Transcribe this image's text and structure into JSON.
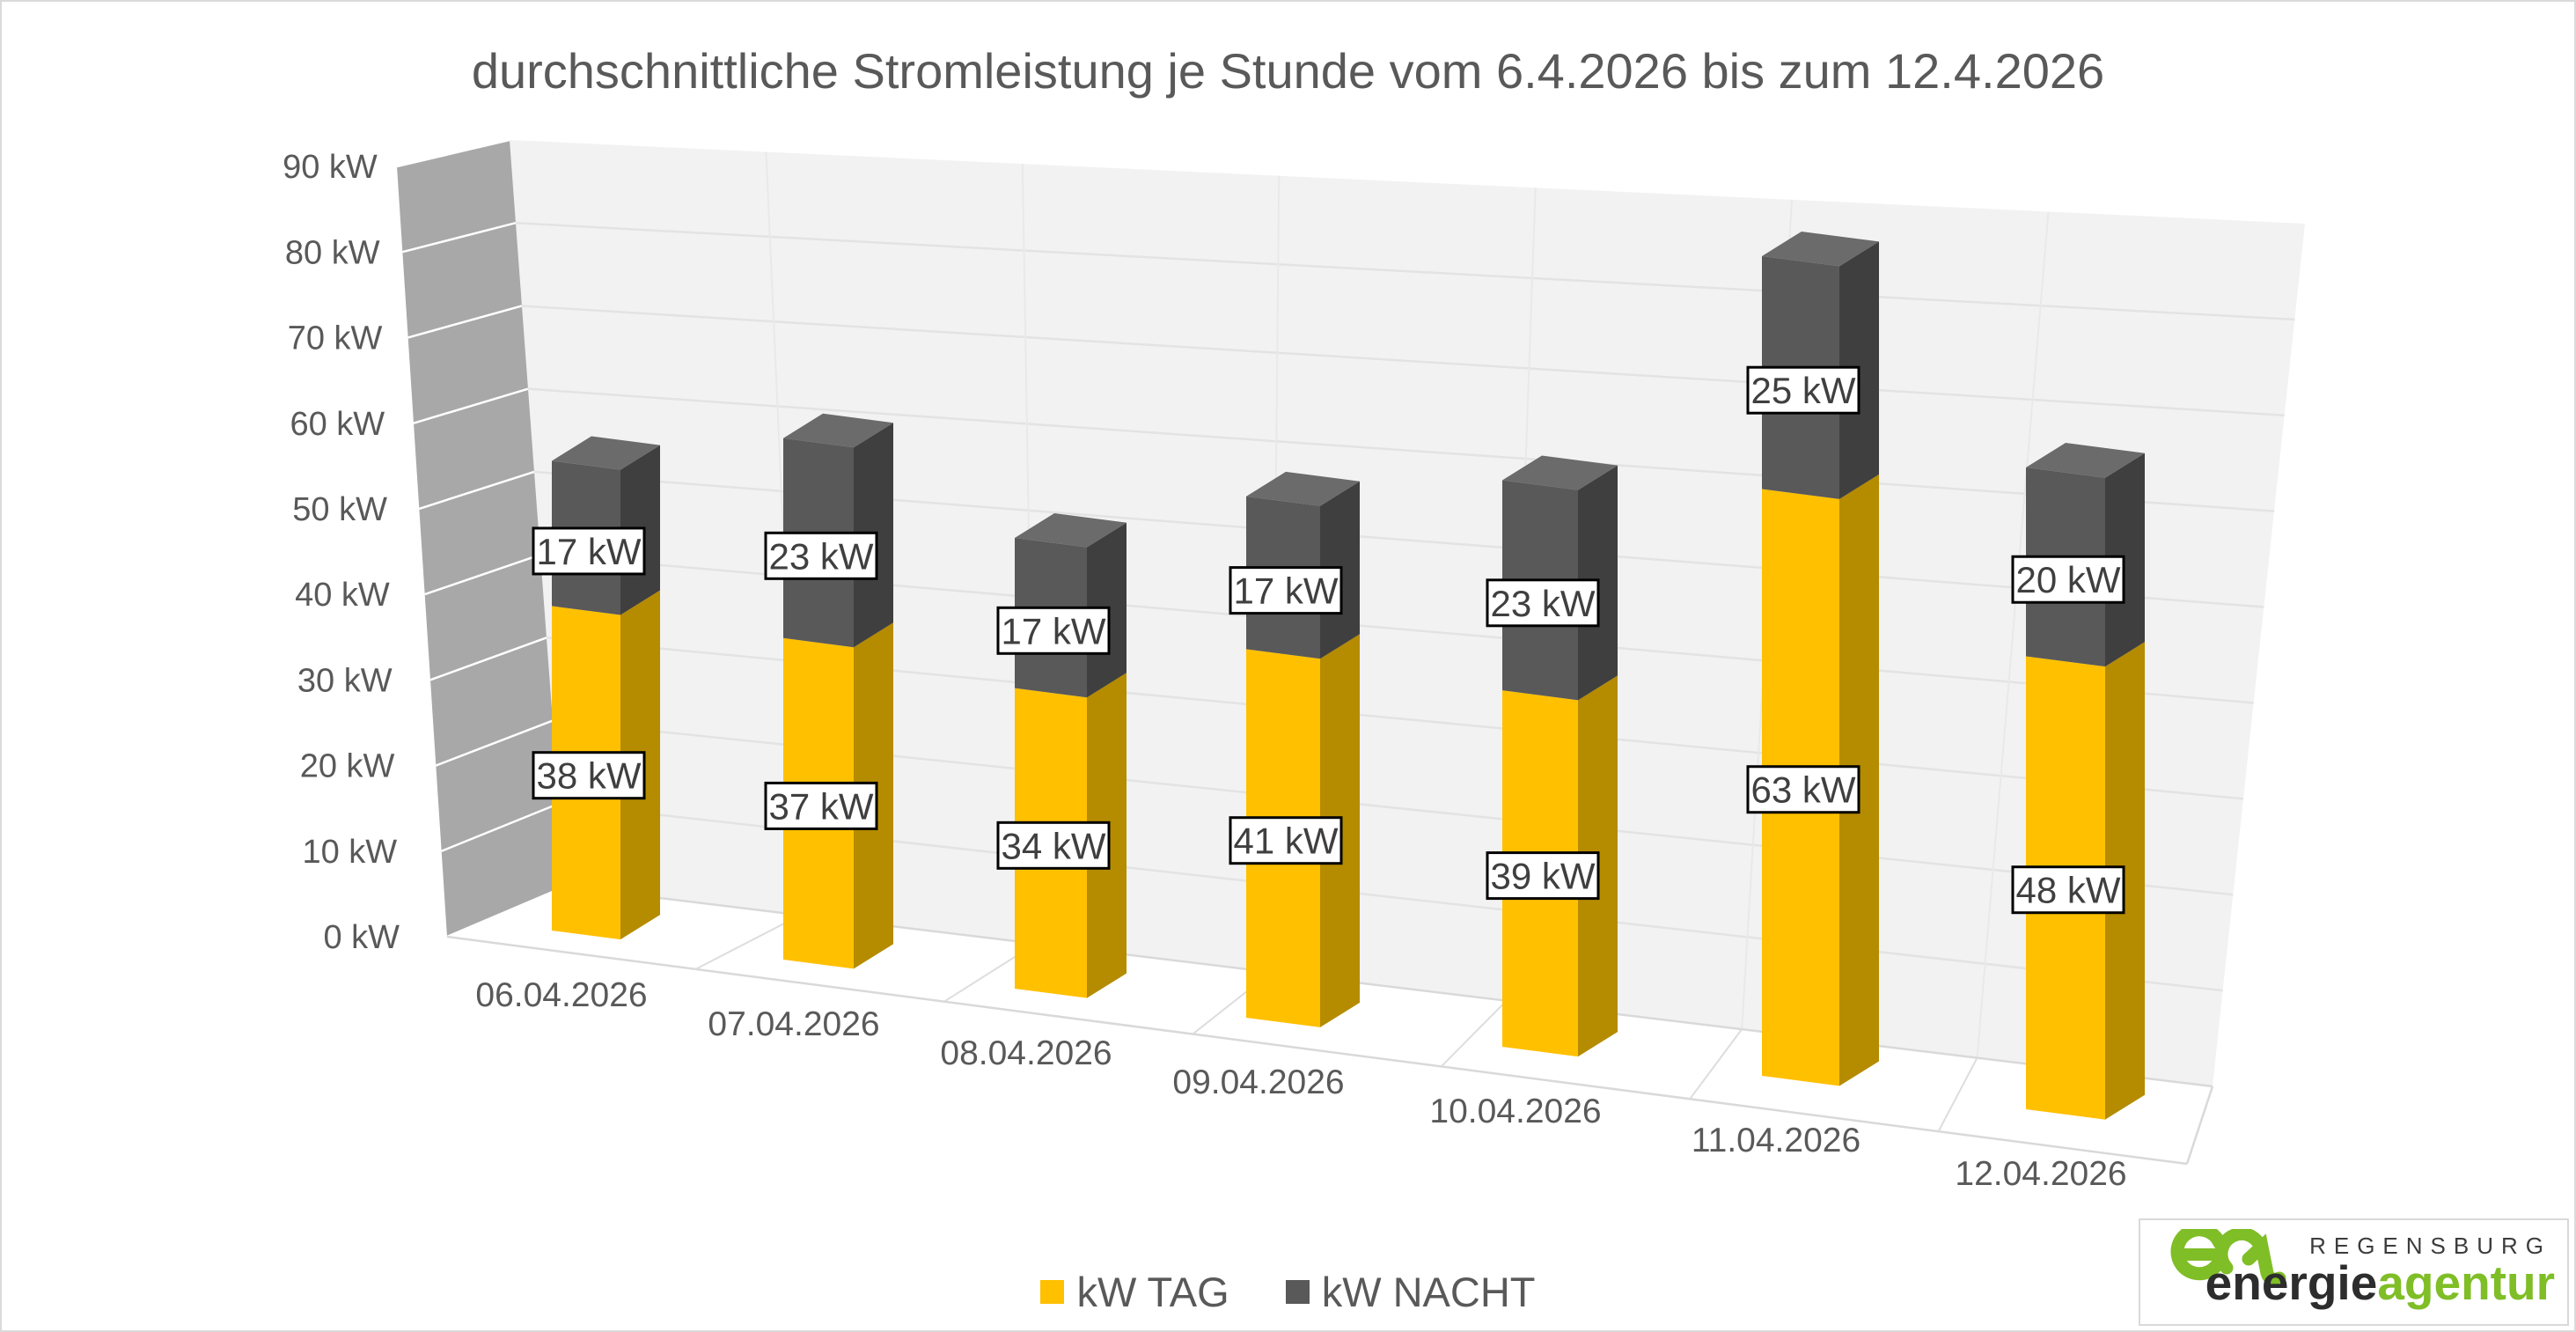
{
  "page": {
    "background": "#FFFFFF",
    "border_color": "#D9D9D9"
  },
  "chart_data": {
    "type": "bar",
    "projection": "3d",
    "stacked": true,
    "title": "durchschnittliche Stromleistung je Stunde vom 6.4.2026 bis zum 12.4.2026",
    "categories": [
      "06.04.2026",
      "07.04.2026",
      "08.04.2026",
      "09.04.2026",
      "10.04.2026",
      "11.04.2026",
      "12.04.2026"
    ],
    "series": [
      {
        "name": "kW TAG",
        "color": "#FFC000",
        "values": [
          38,
          37,
          34,
          41,
          39,
          63,
          48
        ]
      },
      {
        "name": "kW NACHT",
        "color": "#595959",
        "values": [
          17,
          23,
          17,
          17,
          23,
          25,
          20
        ]
      }
    ],
    "value_suffix": " kW",
    "y_axis": {
      "min": 0,
      "max": 90,
      "step": 10,
      "ticks": [
        "0 kW",
        "10 kW",
        "20 kW",
        "30 kW",
        "40 kW",
        "50 kW",
        "60 kW",
        "70 kW",
        "80 kW",
        "90 kW"
      ]
    },
    "legend_position": "bottom",
    "grid": true
  },
  "logo": {
    "region": "REGENSBURG",
    "brand_dark": "energie",
    "brand_green": "agentur",
    "green_color": "#7FBE26",
    "text_color": "#2D2D2D"
  }
}
